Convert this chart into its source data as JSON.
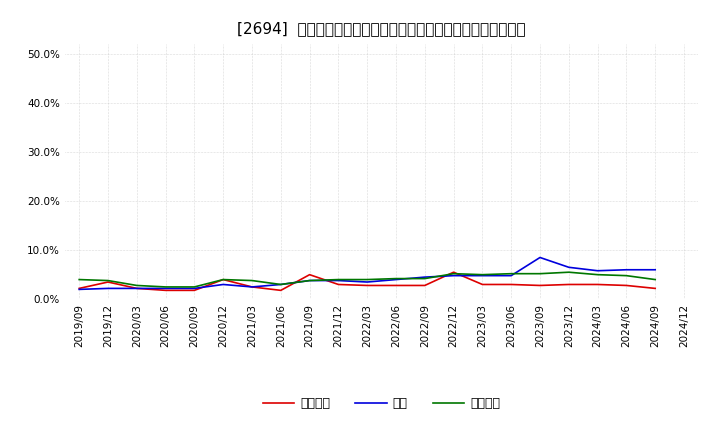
{
  "title": "[2694]  売上債権、在庫、買入債務の総資産に対する比率の推移",
  "xlabel": "",
  "ylabel": "",
  "ylim": [
    0.0,
    0.52
  ],
  "yticks": [
    0.0,
    0.1,
    0.2,
    0.3,
    0.4,
    0.5
  ],
  "ytick_labels": [
    "0.0%",
    "10.0%",
    "20.0%",
    "30.0%",
    "40.0%",
    "50.0%"
  ],
  "dates": [
    "2019/09",
    "2019/12",
    "2020/03",
    "2020/06",
    "2020/09",
    "2020/12",
    "2021/03",
    "2021/06",
    "2021/09",
    "2021/12",
    "2022/03",
    "2022/06",
    "2022/09",
    "2022/12",
    "2023/03",
    "2023/06",
    "2023/09",
    "2023/12",
    "2024/03",
    "2024/06",
    "2024/09",
    "2024/12"
  ],
  "urikake": [
    0.022,
    0.035,
    0.022,
    0.018,
    0.018,
    0.04,
    0.025,
    0.018,
    0.05,
    0.03,
    0.028,
    0.028,
    0.028,
    0.055,
    0.03,
    0.03,
    0.028,
    0.03,
    0.03,
    0.028,
    0.022,
    null
  ],
  "zaiko": [
    0.02,
    0.022,
    0.022,
    0.022,
    0.022,
    0.03,
    0.025,
    0.03,
    0.038,
    0.038,
    0.035,
    0.04,
    0.045,
    0.048,
    0.048,
    0.048,
    0.085,
    0.065,
    0.058,
    0.06,
    0.06,
    null
  ],
  "kainyu": [
    0.04,
    0.038,
    0.028,
    0.025,
    0.025,
    0.04,
    0.038,
    0.03,
    0.038,
    0.04,
    0.04,
    0.042,
    0.042,
    0.052,
    0.05,
    0.052,
    0.052,
    0.055,
    0.05,
    0.048,
    0.04,
    null
  ],
  "urikake_color": "#dd0000",
  "zaiko_color": "#0000dd",
  "kainyu_color": "#007700",
  "legend_label_urikake": "売上債権",
  "legend_label_zaiko": "在庫",
  "legend_label_kainyu": "買入債務",
  "bg_color": "#ffffff",
  "grid_color": "#bbbbbb",
  "title_fontsize": 11,
  "tick_fontsize": 7.5,
  "legend_fontsize": 9
}
